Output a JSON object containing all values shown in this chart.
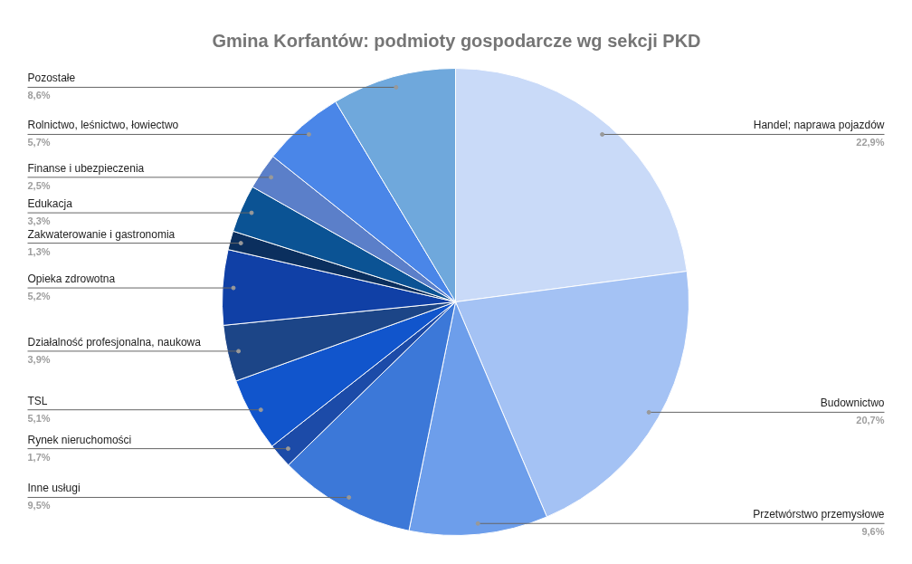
{
  "chart_data": {
    "type": "pie",
    "title": "Gmina Korfantów: podmioty gospodarcze wg sekcji PKD",
    "categories": [
      "Handel; naprawa pojazdów",
      "Budownictwo",
      "Przetwórstwo przemysłowe",
      "Inne usługi",
      "Rynek nieruchomości",
      "TSL",
      "Działalność profesjonalna, naukowa",
      "Opieka zdrowotna",
      "Zakwaterowanie i gastronomia",
      "Edukacja",
      "Finanse i ubezpieczenia",
      "Rolnictwo, leśnictwo, łowiectwo",
      "Pozostałe"
    ],
    "values": [
      22.9,
      20.7,
      9.6,
      9.5,
      1.7,
      5.1,
      3.9,
      5.2,
      1.3,
      3.3,
      2.5,
      5.7,
      8.6
    ],
    "value_labels": [
      "22,9%",
      "20,7%",
      "9,6%",
      "9,5%",
      "1,7%",
      "5,1%",
      "3,9%",
      "5,2%",
      "1,3%",
      "3,3%",
      "2,5%",
      "5,7%",
      "8,6%"
    ],
    "colors": [
      "#c9daf8",
      "#a4c2f4",
      "#6d9eeb",
      "#3c78d8",
      "#1c4ba8",
      "#1155cc",
      "#1c4587",
      "#1040a6",
      "#0b2f5e",
      "#0b5394",
      "#5b7fc9",
      "#4a86e8",
      "#6fa8dc"
    ]
  }
}
